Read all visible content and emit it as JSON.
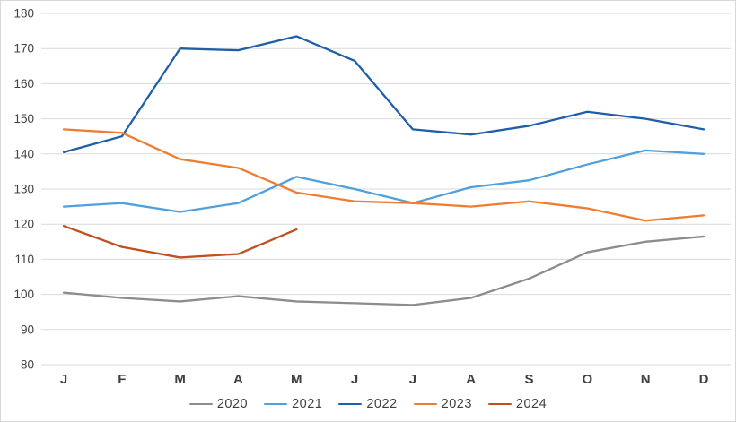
{
  "chart_data": {
    "type": "line",
    "title": "",
    "xlabel": "",
    "ylabel": "",
    "categories": [
      "J",
      "F",
      "M",
      "A",
      "M",
      "J",
      "J",
      "A",
      "S",
      "O",
      "N",
      "D"
    ],
    "series": [
      {
        "name": "2020",
        "color": "#8C8C8C",
        "values": [
          100.5,
          99,
          98,
          99.5,
          98,
          97.5,
          97,
          99,
          104.5,
          112,
          115,
          116.5
        ]
      },
      {
        "name": "2021",
        "color": "#4FA0DD",
        "values": [
          125,
          126,
          123.5,
          126,
          133.5,
          130,
          126,
          130.5,
          132.5,
          137,
          141,
          140
        ]
      },
      {
        "name": "2022",
        "color": "#1F5FA9",
        "values": [
          140.5,
          145,
          170,
          169.5,
          173.5,
          166.5,
          147,
          145.5,
          148,
          152,
          150,
          147
        ]
      },
      {
        "name": "2023",
        "color": "#ED7D31",
        "values": [
          147,
          146,
          138.5,
          136,
          129,
          126.5,
          126,
          125,
          126.5,
          124.5,
          121,
          122.5
        ]
      },
      {
        "name": "2024",
        "color": "#C0501F",
        "values": [
          119.5,
          113.5,
          110.5,
          111.5,
          118.5
        ]
      }
    ],
    "ylim": [
      80,
      180
    ],
    "ytick_step": 10,
    "grid": "horizontal",
    "legend_position": "bottom"
  },
  "colors": {
    "background": "#ffffff",
    "border": "#d6d6d6",
    "gridline": "#d9d9d9",
    "text": "#404040"
  }
}
